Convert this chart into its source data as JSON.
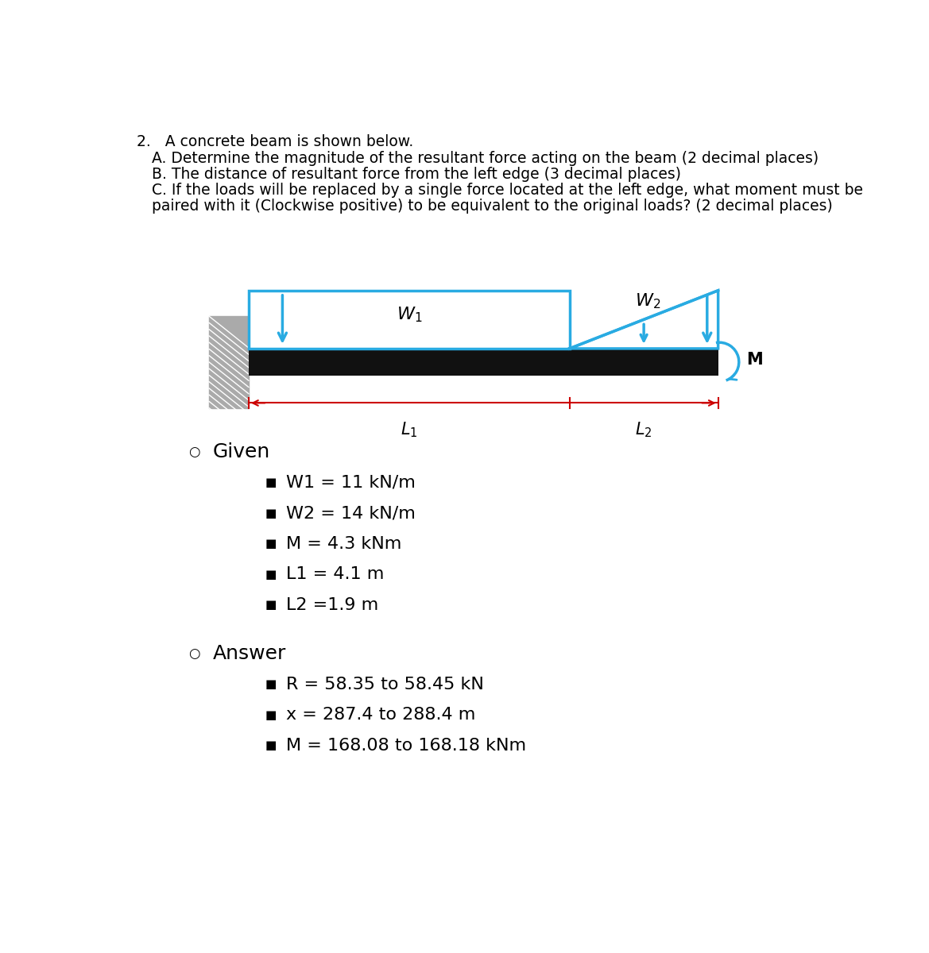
{
  "title_line1": "2.   A concrete beam is shown below.",
  "title_line2": "A. Determine the magnitude of the resultant force acting on the beam (2 decimal places)",
  "title_line3": "B. The distance of resultant force from the left edge (3 decimal places)",
  "title_line4": "C. If the loads will be replaced by a single force located at the left edge, what moment must be",
  "title_line5": "paired with it (Clockwise positive) to be equivalent to the original loads? (2 decimal places)",
  "given_header": "Given",
  "given_items": [
    "W1 = 11 kN/m",
    "W2 = 14 kN/m",
    "M = 4.3 kNm",
    "L1 = 4.1 m",
    "L2 =1.9 m"
  ],
  "answer_header": "Answer",
  "answer_items": [
    "R = 58.35 to 58.45 kN",
    "x = 287.4 to 288.4 m",
    "M = 168.08 to 168.18 kNm"
  ],
  "beam_color": "#111111",
  "load_color": "#29abe2",
  "wall_color": "#aaaaaa",
  "dim_color": "#cc0000",
  "text_color": "#000000",
  "bg_color": "#ffffff"
}
